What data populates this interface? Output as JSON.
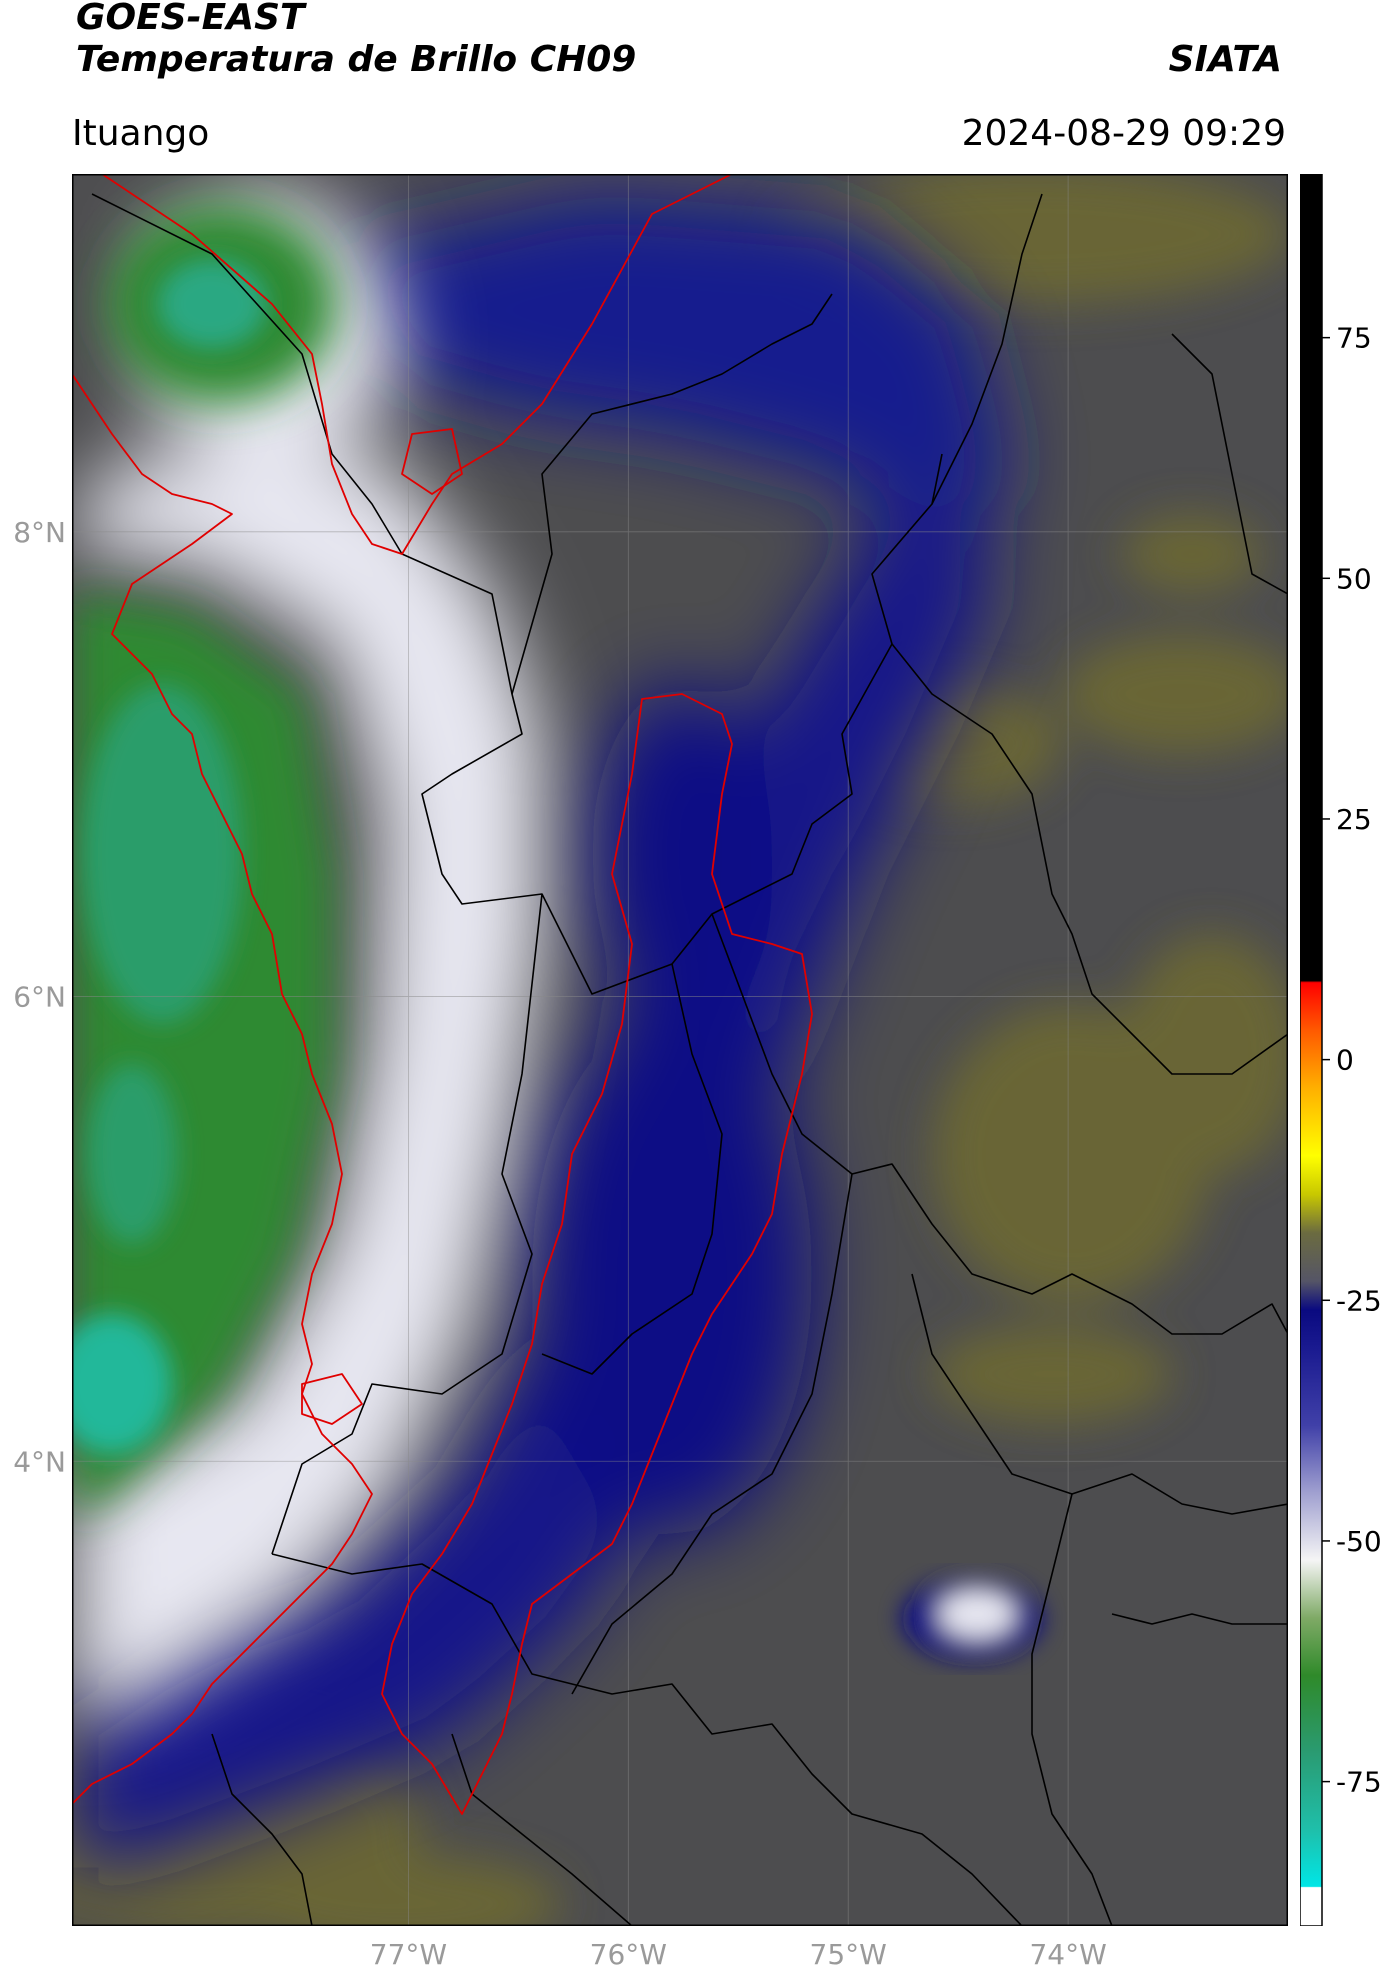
{
  "header": {
    "satellite": "GOES-EAST",
    "product": "Temperatura de Brillo CH09",
    "org": "SIATA",
    "region": "Ituango",
    "datetime": "2024-08-29 09:29"
  },
  "map": {
    "lat_ticks": [
      {
        "label": "8°N",
        "value": 8
      },
      {
        "label": "6°N",
        "value": 6
      },
      {
        "label": "4°N",
        "value": 4
      }
    ],
    "lon_ticks": [
      {
        "label": "77°W",
        "value": -77
      },
      {
        "label": "76°W",
        "value": -76
      },
      {
        "label": "75°W",
        "value": -75
      },
      {
        "label": "74°W",
        "value": -74
      }
    ],
    "extent": {
      "lon_min": -78.53,
      "lon_max": -73.0,
      "lat_min": 2.0,
      "lat_max": 9.54
    },
    "colors": {
      "very_cold_green": "#2a8c3c",
      "teal": "#2fbf9a",
      "white": "#f2f2f8",
      "navy": "#0d0f85",
      "gray": "#4d4d4d",
      "olive": "#6e6b33",
      "dept_border": "#000000",
      "basin_border": "#e00000"
    }
  },
  "colorbar": {
    "min": -90,
    "max": 92,
    "ticks": [
      {
        "label": "75",
        "value": 75
      },
      {
        "label": "50",
        "value": 50
      },
      {
        "label": "25",
        "value": 25
      },
      {
        "label": "0",
        "value": 0
      },
      {
        "label": "-25",
        "value": -25
      },
      {
        "label": "-50",
        "value": -50
      },
      {
        "label": "-75",
        "value": -75
      }
    ],
    "stops": [
      {
        "value": -90,
        "color": "#ffffff"
      },
      {
        "value": -86,
        "color": "#ffffff"
      },
      {
        "value": -85.9,
        "color": "#00e6e6"
      },
      {
        "value": -80,
        "color": "#1fbfaa"
      },
      {
        "value": -72,
        "color": "#2a9b72"
      },
      {
        "value": -64,
        "color": "#2f8a2a"
      },
      {
        "value": -58,
        "color": "#7faa66"
      },
      {
        "value": -52,
        "color": "#f5f5f5"
      },
      {
        "value": -45,
        "color": "#a0a0d0"
      },
      {
        "value": -38,
        "color": "#4040a8"
      },
      {
        "value": -30,
        "color": "#1a1a90"
      },
      {
        "value": -26,
        "color": "#0a0a80"
      },
      {
        "value": -23,
        "color": "#555566"
      },
      {
        "value": -18,
        "color": "#6b6b40"
      },
      {
        "value": -14,
        "color": "#c8c800"
      },
      {
        "value": -10,
        "color": "#ffff00"
      },
      {
        "value": -3,
        "color": "#ffb000"
      },
      {
        "value": 3,
        "color": "#ff5a00"
      },
      {
        "value": 8,
        "color": "#ff0000"
      },
      {
        "value": 8.2,
        "color": "#000000"
      },
      {
        "value": 92,
        "color": "#000000"
      }
    ]
  }
}
